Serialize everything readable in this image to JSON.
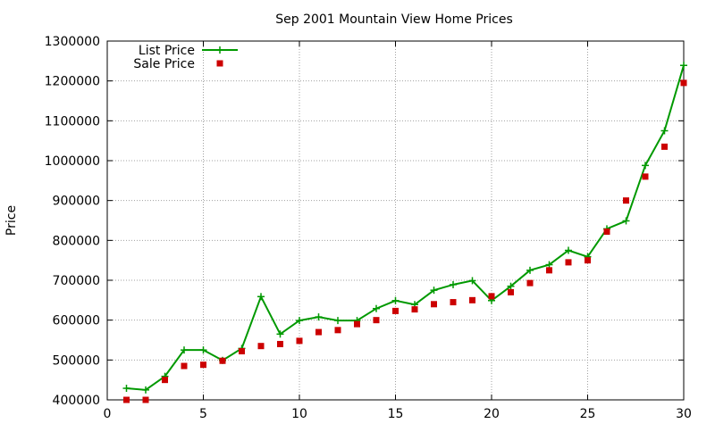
{
  "chart_data": {
    "type": "line",
    "title": "Sep 2001 Mountain View Home Prices",
    "xlabel": "",
    "ylabel": "Price",
    "xlim": [
      0,
      30
    ],
    "ylim": [
      400000,
      1300000
    ],
    "x_ticks": [
      "0",
      "5",
      "10",
      "15",
      "20",
      "25",
      "30"
    ],
    "y_ticks": [
      "400000",
      "500000",
      "600000",
      "700000",
      "800000",
      "900000",
      "1000000",
      "1100000",
      "1200000",
      "1300000"
    ],
    "grid": true,
    "legend_position": "top-left",
    "x": [
      1,
      2,
      3,
      4,
      5,
      6,
      7,
      8,
      9,
      10,
      11,
      12,
      13,
      14,
      15,
      16,
      17,
      18,
      19,
      20,
      21,
      22,
      23,
      24,
      25,
      26,
      27,
      28,
      29,
      30
    ],
    "series": [
      {
        "name": "List Price",
        "style": "line+cross",
        "color": "#009900",
        "values": [
          429000,
          425000,
          459000,
          525000,
          525000,
          499000,
          529000,
          659000,
          565000,
          599000,
          608000,
          599000,
          599000,
          629000,
          649000,
          639000,
          675000,
          689000,
          699000,
          649000,
          685000,
          725000,
          739000,
          775000,
          759000,
          829000,
          849000,
          988000,
          1075000,
          1239000
        ]
      },
      {
        "name": "Sale Price",
        "style": "square",
        "color": "#cc0000",
        "values": [
          400000,
          400000,
          450000,
          485000,
          488000,
          498000,
          522000,
          535000,
          540000,
          548000,
          570000,
          575000,
          590000,
          600000,
          623000,
          627000,
          640000,
          645000,
          650000,
          660000,
          670000,
          693000,
          725000,
          745000,
          750000,
          822000,
          900000,
          960000,
          1035000,
          1195000
        ]
      }
    ]
  }
}
